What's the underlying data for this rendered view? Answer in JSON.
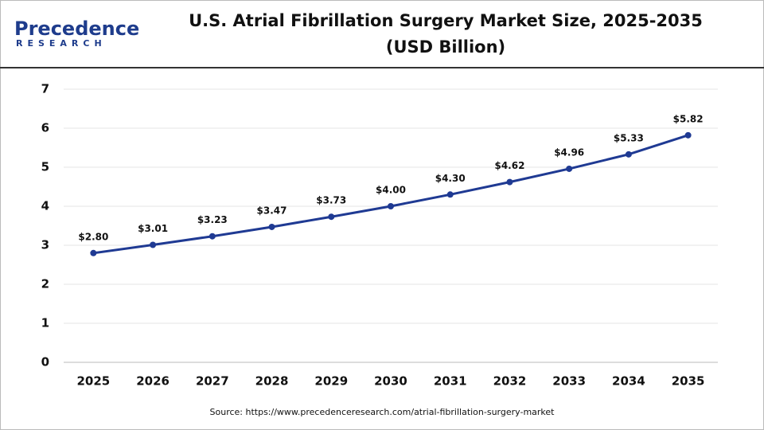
{
  "logo": {
    "name": "Precedence",
    "tagline": "RESEARCH"
  },
  "chart_data": {
    "type": "line",
    "title": "U.S. Atrial Fibrillation Surgery Market Size, 2025-2035",
    "subtitle": "(USD Billion)",
    "categories": [
      "2025",
      "2026",
      "2027",
      "2028",
      "2029",
      "2030",
      "2031",
      "2032",
      "2033",
      "2034",
      "2035"
    ],
    "values": [
      2.8,
      3.01,
      3.23,
      3.47,
      3.73,
      4.0,
      4.3,
      4.62,
      4.96,
      5.33,
      5.82
    ],
    "value_labels": [
      "$2.80",
      "$3.01",
      "$3.23",
      "$3.47",
      "$3.73",
      "$4.00",
      "$4.30",
      "$4.62",
      "$4.96",
      "$5.33",
      "$5.82"
    ],
    "color": "#1f3a93",
    "ylim": [
      0,
      7
    ],
    "yticks": [
      0,
      1,
      2,
      3,
      4,
      5,
      6,
      7
    ],
    "grid": true,
    "source": "Source: https://www.precedenceresearch.com/atrial-fibrillation-surgery-market"
  }
}
